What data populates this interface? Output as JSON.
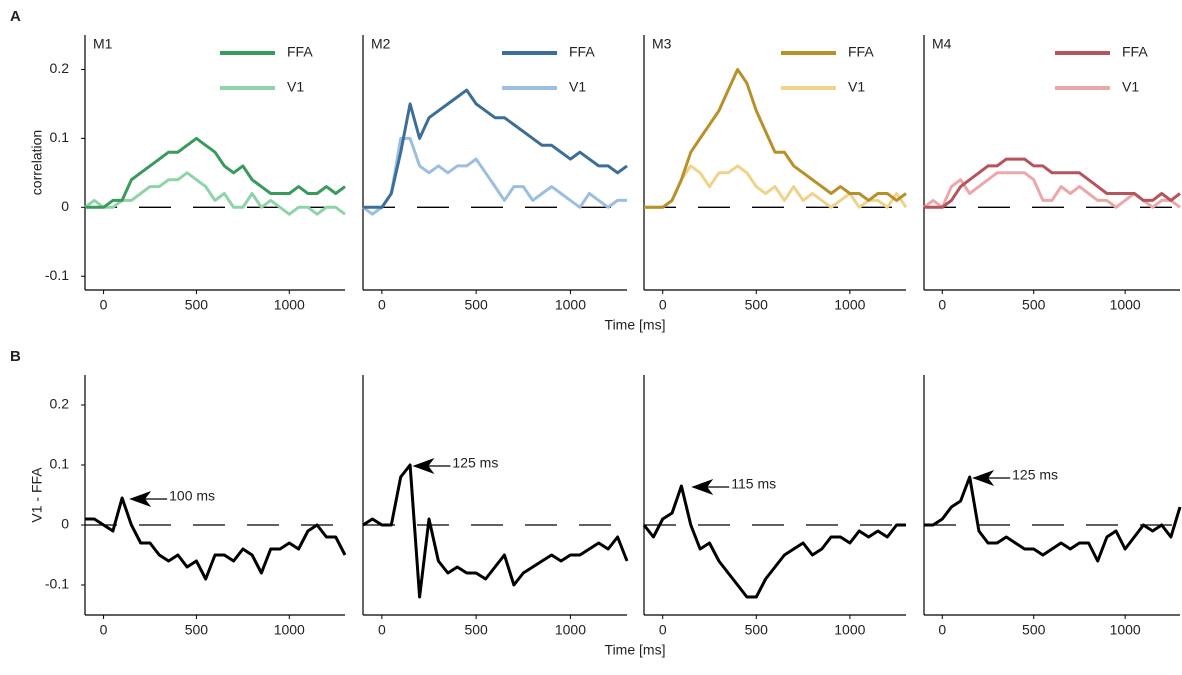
{
  "panel_labels": [
    "A",
    "B"
  ],
  "chart_data": [
    {
      "type": "line",
      "title": "M1",
      "ylabel": "correlation",
      "xlabel": "Time [ms]",
      "x": [
        -100,
        -50,
        0,
        50,
        100,
        150,
        200,
        250,
        300,
        350,
        400,
        450,
        500,
        550,
        600,
        650,
        700,
        750,
        800,
        850,
        900,
        950,
        1000,
        1050,
        1100,
        1150,
        1200,
        1250,
        1300
      ],
      "xlim": [
        -100,
        1300
      ],
      "xticks": [
        0,
        500,
        1000
      ],
      "ylim": [
        -0.12,
        0.25
      ],
      "yticks": [
        -0.1,
        0,
        0.1,
        0.2
      ],
      "hline": 0,
      "series": [
        {
          "name": "FFA",
          "color": "#3a9a5c",
          "values": [
            0,
            0,
            0,
            0.01,
            0.01,
            0.04,
            0.05,
            0.06,
            0.07,
            0.08,
            0.08,
            0.09,
            0.1,
            0.09,
            0.08,
            0.06,
            0.05,
            0.06,
            0.04,
            0.03,
            0.02,
            0.02,
            0.02,
            0.03,
            0.02,
            0.02,
            0.03,
            0.02,
            0.03
          ]
        },
        {
          "name": "V1",
          "color": "#8fd4a8",
          "values": [
            0,
            0.01,
            0,
            0,
            0.01,
            0.01,
            0.02,
            0.03,
            0.03,
            0.04,
            0.04,
            0.05,
            0.04,
            0.03,
            0.01,
            0.02,
            0,
            0,
            0.02,
            0,
            0.01,
            0,
            -0.01,
            0,
            0,
            -0.01,
            0,
            0,
            -0.01
          ]
        }
      ]
    },
    {
      "type": "line",
      "title": "M2",
      "x": [
        -100,
        -50,
        0,
        50,
        100,
        150,
        200,
        250,
        300,
        350,
        400,
        450,
        500,
        550,
        600,
        650,
        700,
        750,
        800,
        850,
        900,
        950,
        1000,
        1050,
        1100,
        1150,
        1200,
        1250,
        1300
      ],
      "xlim": [
        -100,
        1300
      ],
      "xticks": [
        0,
        500,
        1000
      ],
      "ylim": [
        -0.12,
        0.25
      ],
      "hline": 0,
      "series": [
        {
          "name": "FFA",
          "color": "#3c6e98",
          "values": [
            0,
            0,
            0,
            0.02,
            0.08,
            0.15,
            0.1,
            0.13,
            0.14,
            0.15,
            0.16,
            0.17,
            0.15,
            0.14,
            0.13,
            0.13,
            0.12,
            0.11,
            0.1,
            0.09,
            0.09,
            0.08,
            0.07,
            0.08,
            0.07,
            0.06,
            0.06,
            0.05,
            0.06
          ]
        },
        {
          "name": "V1",
          "color": "#9dbfdf",
          "values": [
            0,
            -0.01,
            0,
            0.02,
            0.1,
            0.1,
            0.06,
            0.05,
            0.06,
            0.05,
            0.06,
            0.06,
            0.07,
            0.05,
            0.03,
            0.01,
            0.03,
            0.03,
            0.01,
            0.02,
            0.03,
            0.02,
            0.01,
            0,
            0.02,
            0.01,
            0,
            0.01,
            0.01
          ]
        }
      ]
    },
    {
      "type": "line",
      "title": "M3",
      "x": [
        -100,
        -50,
        0,
        50,
        100,
        150,
        200,
        250,
        300,
        350,
        400,
        450,
        500,
        550,
        600,
        650,
        700,
        750,
        800,
        850,
        900,
        950,
        1000,
        1050,
        1100,
        1150,
        1200,
        1250,
        1300
      ],
      "xlim": [
        -100,
        1300
      ],
      "xticks": [
        0,
        500,
        1000
      ],
      "ylim": [
        -0.12,
        0.25
      ],
      "hline": 0,
      "series": [
        {
          "name": "FFA",
          "color": "#b8902a",
          "values": [
            0,
            0,
            0,
            0.01,
            0.04,
            0.08,
            0.1,
            0.12,
            0.14,
            0.17,
            0.2,
            0.18,
            0.14,
            0.11,
            0.08,
            0.08,
            0.06,
            0.05,
            0.04,
            0.03,
            0.02,
            0.03,
            0.02,
            0.02,
            0.01,
            0.02,
            0.02,
            0.01,
            0.02
          ]
        },
        {
          "name": "V1",
          "color": "#efd38a",
          "values": [
            0,
            0,
            0,
            0.01,
            0.04,
            0.06,
            0.05,
            0.03,
            0.05,
            0.05,
            0.06,
            0.05,
            0.03,
            0.02,
            0.03,
            0.01,
            0.03,
            0.01,
            0.02,
            0.01,
            0,
            0.01,
            0.02,
            0,
            0.01,
            0.01,
            0,
            0.02,
            0
          ]
        }
      ]
    },
    {
      "type": "line",
      "title": "M4",
      "x": [
        -100,
        -50,
        0,
        50,
        100,
        150,
        200,
        250,
        300,
        350,
        400,
        450,
        500,
        550,
        600,
        650,
        700,
        750,
        800,
        850,
        900,
        950,
        1000,
        1050,
        1100,
        1150,
        1200,
        1250,
        1300
      ],
      "xlim": [
        -100,
        1300
      ],
      "xticks": [
        0,
        500,
        1000
      ],
      "ylim": [
        -0.12,
        0.25
      ],
      "hline": 0,
      "series": [
        {
          "name": "FFA",
          "color": "#b5545c",
          "values": [
            0,
            0,
            0,
            0.01,
            0.03,
            0.04,
            0.05,
            0.06,
            0.06,
            0.07,
            0.07,
            0.07,
            0.06,
            0.06,
            0.05,
            0.05,
            0.05,
            0.05,
            0.04,
            0.03,
            0.02,
            0.02,
            0.02,
            0.02,
            0.01,
            0.01,
            0.02,
            0.01,
            0.02
          ]
        },
        {
          "name": "V1",
          "color": "#eba8ab",
          "values": [
            0,
            0.01,
            0,
            0.03,
            0.04,
            0.02,
            0.03,
            0.04,
            0.05,
            0.05,
            0.05,
            0.05,
            0.04,
            0.01,
            0.01,
            0.03,
            0.02,
            0.03,
            0.02,
            0.01,
            0.01,
            0,
            0.01,
            0.02,
            0.01,
            0,
            0.01,
            0.01,
            0
          ]
        }
      ]
    },
    {
      "type": "line",
      "ylabel": "V1 - FFA",
      "xlabel": "Time [ms]",
      "x": [
        -100,
        -50,
        0,
        50,
        100,
        150,
        200,
        250,
        300,
        350,
        400,
        450,
        500,
        550,
        600,
        650,
        700,
        750,
        800,
        850,
        900,
        950,
        1000,
        1050,
        1100,
        1150,
        1200,
        1250,
        1300
      ],
      "xlim": [
        -100,
        1300
      ],
      "xticks": [
        0,
        500,
        1000
      ],
      "ylim": [
        -0.15,
        0.25
      ],
      "yticks": [
        -0.1,
        0,
        0.1,
        0.2
      ],
      "hline": 0,
      "color": "#000000",
      "values": [
        0.01,
        0.01,
        0,
        -0.01,
        0.045,
        0,
        -0.03,
        -0.03,
        -0.05,
        -0.06,
        -0.05,
        -0.07,
        -0.06,
        -0.09,
        -0.05,
        -0.05,
        -0.06,
        -0.04,
        -0.05,
        -0.08,
        -0.04,
        -0.04,
        -0.03,
        -0.04,
        -0.01,
        0,
        -0.02,
        -0.02,
        -0.05
      ],
      "annotations": [
        {
          "text": "100 ms",
          "x": 100,
          "y": 0.045
        }
      ]
    },
    {
      "type": "line",
      "x": [
        -100,
        -50,
        0,
        50,
        100,
        150,
        200,
        250,
        300,
        350,
        400,
        450,
        500,
        550,
        600,
        650,
        700,
        750,
        800,
        850,
        900,
        950,
        1000,
        1050,
        1100,
        1150,
        1200,
        1250,
        1300
      ],
      "xlim": [
        -100,
        1300
      ],
      "xticks": [
        0,
        500,
        1000
      ],
      "ylim": [
        -0.15,
        0.25
      ],
      "hline": 0,
      "color": "#000000",
      "values": [
        0,
        0.01,
        0,
        0,
        0.08,
        0.1,
        -0.12,
        0.01,
        -0.06,
        -0.08,
        -0.07,
        -0.08,
        -0.08,
        -0.09,
        -0.07,
        -0.05,
        -0.1,
        -0.08,
        -0.07,
        -0.06,
        -0.05,
        -0.06,
        -0.05,
        -0.05,
        -0.04,
        -0.03,
        -0.04,
        -0.02,
        -0.06
      ],
      "annotations": [
        {
          "text": "125 ms",
          "x": 125,
          "y": 0.1
        }
      ]
    },
    {
      "type": "line",
      "x": [
        -100,
        -50,
        0,
        50,
        100,
        150,
        200,
        250,
        300,
        350,
        400,
        450,
        500,
        550,
        600,
        650,
        700,
        750,
        800,
        850,
        900,
        950,
        1000,
        1050,
        1100,
        1150,
        1200,
        1250,
        1300
      ],
      "xlim": [
        -100,
        1300
      ],
      "xticks": [
        0,
        500,
        1000
      ],
      "ylim": [
        -0.15,
        0.25
      ],
      "hline": 0,
      "color": "#000000",
      "values": [
        0,
        -0.02,
        0.01,
        0.02,
        0.065,
        0,
        -0.04,
        -0.03,
        -0.06,
        -0.08,
        -0.1,
        -0.12,
        -0.12,
        -0.09,
        -0.07,
        -0.05,
        -0.04,
        -0.03,
        -0.05,
        -0.04,
        -0.02,
        -0.02,
        -0.03,
        -0.01,
        -0.02,
        -0.01,
        -0.02,
        0,
        0
      ],
      "annotations": [
        {
          "text": "115 ms",
          "x": 115,
          "y": 0.065
        }
      ]
    },
    {
      "type": "line",
      "x": [
        -100,
        -50,
        0,
        50,
        100,
        150,
        200,
        250,
        300,
        350,
        400,
        450,
        500,
        550,
        600,
        650,
        700,
        750,
        800,
        850,
        900,
        950,
        1000,
        1050,
        1100,
        1150,
        1200,
        1250,
        1300
      ],
      "xlim": [
        -100,
        1300
      ],
      "xticks": [
        0,
        500,
        1000
      ],
      "ylim": [
        -0.15,
        0.25
      ],
      "hline": 0,
      "color": "#000000",
      "values": [
        0,
        0,
        0.01,
        0.03,
        0.04,
        0.08,
        -0.01,
        -0.03,
        -0.03,
        -0.02,
        -0.03,
        -0.04,
        -0.04,
        -0.05,
        -0.04,
        -0.03,
        -0.04,
        -0.03,
        -0.03,
        -0.06,
        -0.02,
        -0.01,
        -0.04,
        -0.02,
        0,
        -0.01,
        0,
        -0.02,
        0.03
      ],
      "annotations": [
        {
          "text": "125 ms",
          "x": 125,
          "y": 0.08
        }
      ]
    }
  ]
}
